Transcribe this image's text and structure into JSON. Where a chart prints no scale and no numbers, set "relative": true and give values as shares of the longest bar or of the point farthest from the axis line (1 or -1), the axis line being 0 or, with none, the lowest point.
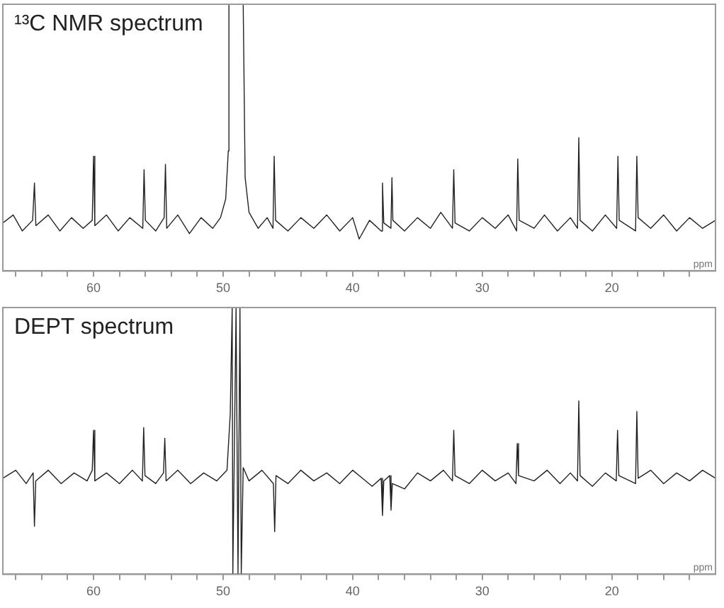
{
  "chart_data": [
    {
      "type": "line",
      "title": "¹³C NMR spectrum",
      "xlabel": "ppm",
      "relative": true,
      "xlim": [
        67,
        12
      ],
      "xticks": [
        {
          "value": 66,
          "label": null
        },
        {
          "value": 64,
          "label": null
        },
        {
          "value": 62,
          "label": null
        },
        60,
        {
          "value": 58,
          "label": null
        },
        {
          "value": 56,
          "label": null
        },
        {
          "value": 54,
          "label": null
        },
        {
          "value": 52,
          "label": null
        },
        50,
        {
          "value": 48,
          "label": null
        },
        {
          "value": 46,
          "label": null
        },
        {
          "value": 44,
          "label": null
        },
        {
          "value": 42,
          "label": null
        },
        40,
        {
          "value": 38,
          "label": null
        },
        {
          "value": 36,
          "label": null
        },
        {
          "value": 34,
          "label": null
        },
        {
          "value": 32,
          "label": null
        },
        30,
        {
          "value": 28,
          "label": null
        },
        {
          "value": 26,
          "label": null
        },
        {
          "value": 24,
          "label": null
        },
        {
          "value": 22,
          "label": null
        },
        20,
        {
          "value": 18,
          "label": null
        },
        {
          "value": 16,
          "label": null
        },
        {
          "value": 14,
          "label": null
        }
      ],
      "series": [
        {
          "color": "#222222",
          "x": [
            67,
            66.2,
            65.5,
            64.7,
            64.56,
            64.45,
            63.5,
            62.6,
            61.7,
            60.8,
            60.1,
            60.0,
            59.9,
            59,
            58.1,
            57.2,
            56.2,
            56.1,
            56.0,
            55.2,
            54.55,
            54.45,
            54.35,
            53.5,
            52.6,
            51.7,
            50.8,
            50.2,
            49.8,
            49.6,
            49.55,
            48.45,
            48.3,
            48.0,
            47.3,
            46.6,
            46.15,
            46.06,
            45.95,
            45,
            44,
            43,
            42,
            41,
            40,
            39.5,
            38.7,
            37.8,
            37.7,
            37.6,
            37.05,
            36.97,
            36.9,
            36,
            35,
            34,
            33.2,
            32.3,
            32.2,
            32.1,
            31,
            30,
            29,
            28,
            27.35,
            27.26,
            27.15,
            26,
            25.2,
            24.2,
            23.2,
            22.65,
            22.55,
            22.45,
            21.5,
            20.5,
            19.63,
            19.53,
            19.43,
            18.17,
            18.07,
            17.97,
            17,
            16,
            15,
            14,
            13,
            12
          ],
          "values": [
            0.18,
            0.21,
            0.15,
            0.19,
            0.33,
            0.17,
            0.21,
            0.15,
            0.2,
            0.16,
            0.19,
            0.43,
            0.17,
            0.21,
            0.15,
            0.2,
            0.16,
            0.38,
            0.19,
            0.15,
            0.2,
            0.4,
            0.16,
            0.21,
            0.14,
            0.2,
            0.16,
            0.2,
            0.27,
            0.45,
            1,
            1,
            0.35,
            0.22,
            0.16,
            0.2,
            0.16,
            0.43,
            0.19,
            0.15,
            0.2,
            0.16,
            0.21,
            0.15,
            0.2,
            0.12,
            0.19,
            0.15,
            0.33,
            0.18,
            0.16,
            0.35,
            0.19,
            0.15,
            0.2,
            0.16,
            0.22,
            0.16,
            0.38,
            0.18,
            0.15,
            0.2,
            0.16,
            0.21,
            0.15,
            0.42,
            0.19,
            0.16,
            0.21,
            0.15,
            0.2,
            0.16,
            0.5,
            0.19,
            0.15,
            0.21,
            0.16,
            0.43,
            0.19,
            0.15,
            0.43,
            0.2,
            0.16,
            0.21,
            0.15,
            0.2,
            0.16,
            0.19
          ]
        }
      ]
    },
    {
      "type": "line",
      "title": "DEPT spectrum",
      "xlabel": "ppm",
      "relative": true,
      "xlim": [
        67,
        12
      ],
      "xticks": [
        {
          "value": 66,
          "label": null
        },
        {
          "value": 64,
          "label": null
        },
        {
          "value": 62,
          "label": null
        },
        60,
        {
          "value": 58,
          "label": null
        },
        {
          "value": 56,
          "label": null
        },
        {
          "value": 54,
          "label": null
        },
        {
          "value": 52,
          "label": null
        },
        50,
        {
          "value": 48,
          "label": null
        },
        {
          "value": 46,
          "label": null
        },
        {
          "value": 44,
          "label": null
        },
        {
          "value": 42,
          "label": null
        },
        40,
        {
          "value": 38,
          "label": null
        },
        {
          "value": 36,
          "label": null
        },
        {
          "value": 34,
          "label": null
        },
        {
          "value": 32,
          "label": null
        },
        30,
        {
          "value": 28,
          "label": null
        },
        {
          "value": 26,
          "label": null
        },
        {
          "value": 24,
          "label": null
        },
        {
          "value": 22,
          "label": null
        },
        20,
        {
          "value": 18,
          "label": null
        },
        {
          "value": 16,
          "label": null
        },
        {
          "value": 14,
          "label": null
        }
      ],
      "series": [
        {
          "color": "#222222",
          "x": [
            67,
            66,
            65.2,
            64.66,
            64.56,
            64.46,
            63.5,
            62.5,
            61.5,
            60.5,
            60.1,
            60.0,
            59.9,
            59,
            58,
            57,
            56.23,
            56.13,
            56.03,
            55.2,
            54.6,
            54.5,
            54.4,
            53.5,
            52.5,
            51.5,
            50.5,
            49.7,
            49.45,
            49.3,
            49.25,
            49.0,
            48.85,
            48.7,
            48.6,
            48.45,
            48,
            47,
            46.12,
            46.02,
            45.92,
            45,
            44,
            43,
            42,
            41,
            40,
            38.5,
            37.8,
            37.7,
            37.6,
            37.14,
            37.04,
            36.94,
            36,
            35,
            34,
            33,
            32.3,
            32.2,
            32.1,
            31,
            30,
            29,
            28,
            27.4,
            27.3,
            27.2,
            26,
            25,
            24,
            23.2,
            22.65,
            22.55,
            22.45,
            21.5,
            20.5,
            19.66,
            19.56,
            19.46,
            18.17,
            18.07,
            17.97,
            17,
            16,
            15,
            14,
            13,
            12
          ],
          "values": [
            0.36,
            0.39,
            0.34,
            0.38,
            0.18,
            0.35,
            0.39,
            0.34,
            0.38,
            0.35,
            0.39,
            0.54,
            0.35,
            0.38,
            0.34,
            0.39,
            0.35,
            0.55,
            0.37,
            0.34,
            0.38,
            0.51,
            0.35,
            0.39,
            0.34,
            0.38,
            0.35,
            0.39,
            0.6,
            1,
            0,
            1,
            0,
            1,
            0,
            0.4,
            0.35,
            0.39,
            0.34,
            0.16,
            0.37,
            0.34,
            0.39,
            0.35,
            0.38,
            0.34,
            0.39,
            0.33,
            0.36,
            0.22,
            0.35,
            0.37,
            0.24,
            0.34,
            0.32,
            0.38,
            0.35,
            0.39,
            0.35,
            0.54,
            0.37,
            0.34,
            0.39,
            0.35,
            0.38,
            0.34,
            0.49,
            0.37,
            0.35,
            0.39,
            0.34,
            0.38,
            0.35,
            0.65,
            0.37,
            0.33,
            0.38,
            0.35,
            0.54,
            0.37,
            0.34,
            0.61,
            0.36,
            0.39,
            0.34,
            0.38,
            0.35,
            0.39,
            0.36
          ]
        }
      ]
    }
  ]
}
